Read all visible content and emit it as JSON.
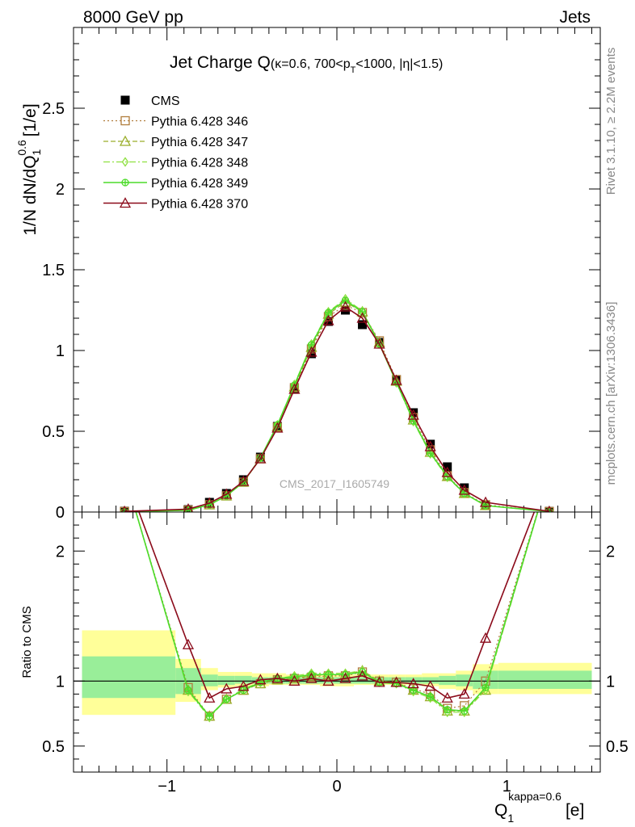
{
  "header": {
    "left": "8000 GeV pp",
    "right": "Jets"
  },
  "side_labels": {
    "rivet": "Rivet 3.1.10, ≥ 2.2M events",
    "mcplots": "mcplots.cern.ch [arXiv:1306.3436]"
  },
  "colors": {
    "cms": "#000000",
    "p346": "#b07d3c",
    "p347": "#9aae2a",
    "p348": "#8ee040",
    "p349": "#4cdc2a",
    "p370": "#8b0a1a",
    "band_yellow": "#ffff99",
    "band_green": "#99ee99"
  },
  "chart_data": [
    {
      "panel": "main",
      "type": "line",
      "title_main": "Jet Charge Q",
      "title_sub": "(κ=0.6, 700<p",
      "title_sub_subscript": "T",
      "title_sub_tail": "<1000, |η|<1.5)",
      "ylabel": "1/N dN/dQ",
      "ylabel_sub": "1",
      "ylabel_sup": "0.6",
      "ylabel_unit": "[1/e]",
      "watermark": "CMS_2017_I1605749",
      "xlim": [
        -1.55,
        1.55
      ],
      "ylim": [
        0,
        3.0
      ],
      "yticks": [
        0,
        0.5,
        1,
        1.5,
        2,
        2.5
      ],
      "ytick_labels": [
        "0",
        "0.5",
        "1",
        "1.5",
        "2",
        "2.5"
      ],
      "legend_position": "top-left",
      "x": [
        -1.25,
        -0.875,
        -0.75,
        -0.65,
        -0.55,
        -0.45,
        -0.35,
        -0.25,
        -0.15,
        -0.05,
        0.05,
        0.15,
        0.25,
        0.35,
        0.45,
        0.55,
        0.65,
        0.75,
        0.875,
        1.25
      ],
      "series": [
        {
          "name": "CMS",
          "values": [
            0.005,
            0.015,
            0.06,
            0.115,
            0.2,
            0.34,
            0.53,
            0.76,
            0.98,
            1.18,
            1.25,
            1.16,
            1.05,
            0.82,
            0.615,
            0.42,
            0.28,
            0.15,
            0.045,
            0.004
          ]
        },
        {
          "name": "Pythia 6.428 346",
          "values": [
            0.003,
            0.012,
            0.045,
            0.1,
            0.185,
            0.33,
            0.525,
            0.77,
            1.01,
            1.21,
            1.28,
            1.235,
            1.06,
            0.82,
            0.585,
            0.385,
            0.225,
            0.12,
            0.045,
            0.003
          ]
        },
        {
          "name": "Pythia 6.428 347",
          "values": [
            0.002,
            0.011,
            0.045,
            0.1,
            0.185,
            0.33,
            0.53,
            0.775,
            1.02,
            1.225,
            1.3,
            1.24,
            1.05,
            0.81,
            0.57,
            0.37,
            0.22,
            0.115,
            0.04,
            0.003
          ]
        },
        {
          "name": "Pythia 6.428 348",
          "values": [
            0.002,
            0.011,
            0.045,
            0.1,
            0.185,
            0.335,
            0.54,
            0.79,
            1.04,
            1.24,
            1.32,
            1.245,
            1.04,
            0.8,
            0.56,
            0.36,
            0.215,
            0.115,
            0.04,
            0.003
          ]
        },
        {
          "name": "Pythia 6.428 349",
          "values": [
            0.002,
            0.011,
            0.045,
            0.1,
            0.185,
            0.335,
            0.54,
            0.785,
            1.035,
            1.235,
            1.31,
            1.24,
            1.04,
            0.805,
            0.565,
            0.365,
            0.22,
            0.115,
            0.04,
            0.003
          ]
        },
        {
          "name": "Pythia 6.428 370",
          "values": [
            0.004,
            0.018,
            0.055,
            0.11,
            0.19,
            0.33,
            0.52,
            0.76,
            0.99,
            1.185,
            1.27,
            1.2,
            1.04,
            0.815,
            0.6,
            0.405,
            0.245,
            0.135,
            0.06,
            0.004
          ]
        }
      ]
    },
    {
      "panel": "ratio",
      "type": "line",
      "ylabel": "Ratio to CMS",
      "xlabel": "Q",
      "xlabel_sub": "1",
      "xlabel_sup": "kappa=0.6",
      "xlabel_unit": "[e]",
      "xlim": [
        -1.55,
        1.55
      ],
      "ylim": [
        0.3,
        2.3
      ],
      "xticks": [
        -1,
        0,
        1
      ],
      "xtick_labels": [
        "−1",
        "0",
        "1"
      ],
      "yticks": [
        0.5,
        1,
        2
      ],
      "ytick_labels": [
        "0.5",
        "1",
        "2"
      ],
      "x": [
        -1.25,
        -0.875,
        -0.75,
        -0.65,
        -0.55,
        -0.45,
        -0.35,
        -0.25,
        -0.15,
        -0.05,
        0.05,
        0.15,
        0.25,
        0.35,
        0.45,
        0.55,
        0.65,
        0.75,
        0.875,
        1.25
      ],
      "band_edges": [
        -1.5,
        -0.95,
        -0.8,
        -0.7,
        -0.6,
        -0.5,
        -0.4,
        -0.3,
        -0.2,
        -0.1,
        0.0,
        0.1,
        0.2,
        0.3,
        0.4,
        0.5,
        0.6,
        0.7,
        0.8,
        0.95,
        1.5
      ],
      "band_yellow_lo": [
        0.74,
        0.84,
        0.93,
        0.95,
        0.96,
        0.96,
        0.97,
        0.97,
        0.97,
        0.96,
        0.96,
        0.97,
        0.97,
        0.97,
        0.97,
        0.96,
        0.94,
        0.93,
        0.9,
        0.9
      ],
      "band_yellow_hi": [
        1.39,
        1.17,
        1.1,
        1.07,
        1.07,
        1.06,
        1.06,
        1.05,
        1.05,
        1.05,
        1.05,
        1.05,
        1.05,
        1.05,
        1.05,
        1.06,
        1.06,
        1.08,
        1.13,
        1.14
      ],
      "band_green_lo": [
        0.87,
        0.9,
        0.96,
        0.97,
        0.98,
        0.98,
        0.98,
        0.98,
        0.98,
        0.98,
        0.98,
        0.98,
        0.98,
        0.98,
        0.98,
        0.98,
        0.97,
        0.96,
        0.94,
        0.94
      ],
      "band_green_hi": [
        1.19,
        1.1,
        1.05,
        1.04,
        1.04,
        1.03,
        1.03,
        1.03,
        1.03,
        1.03,
        1.03,
        1.03,
        1.03,
        1.03,
        1.03,
        1.03,
        1.04,
        1.05,
        1.08,
        1.08
      ],
      "series": [
        {
          "name": "Pythia 6.428 346",
          "values": [
            2.6,
            0.95,
            0.73,
            0.86,
            0.93,
            0.98,
            1.01,
            1.02,
            1.03,
            1.04,
            1.04,
            1.07,
            1.0,
            0.99,
            0.94,
            0.9,
            0.79,
            0.81,
            1.0,
            2.6
          ]
        },
        {
          "name": "Pythia 6.428 347",
          "values": [
            2.6,
            0.93,
            0.73,
            0.86,
            0.93,
            0.98,
            1.01,
            1.02,
            1.04,
            1.05,
            1.05,
            1.08,
            1.0,
            0.99,
            0.93,
            0.88,
            0.77,
            0.77,
            0.93,
            2.6
          ]
        },
        {
          "name": "Pythia 6.428 348",
          "values": [
            2.6,
            0.92,
            0.72,
            0.86,
            0.94,
            0.99,
            1.02,
            1.04,
            1.06,
            1.06,
            1.06,
            1.08,
            0.99,
            0.98,
            0.92,
            0.87,
            0.76,
            0.76,
            0.93,
            2.6
          ]
        },
        {
          "name": "Pythia 6.428 349",
          "values": [
            2.6,
            0.93,
            0.73,
            0.86,
            0.93,
            0.99,
            1.02,
            1.03,
            1.05,
            1.05,
            1.05,
            1.07,
            0.99,
            0.98,
            0.93,
            0.88,
            0.78,
            0.77,
            0.95,
            2.6
          ]
        },
        {
          "name": "Pythia 6.428 370",
          "values": [
            2.6,
            1.28,
            0.87,
            0.94,
            0.96,
            1.01,
            1.02,
            1.0,
            1.02,
            1.0,
            1.02,
            1.04,
            0.99,
            0.99,
            0.98,
            0.96,
            0.87,
            0.9,
            1.33,
            2.6
          ]
        }
      ]
    }
  ]
}
